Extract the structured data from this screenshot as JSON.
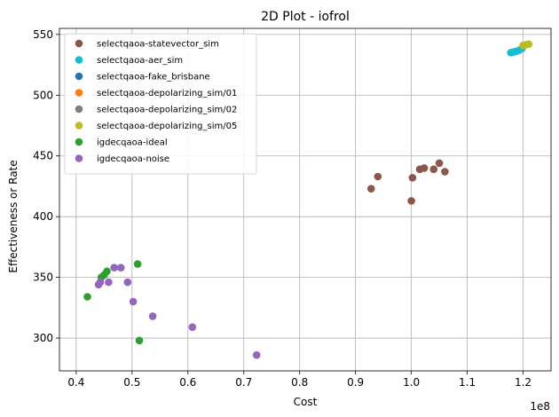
{
  "chart_data": {
    "type": "scatter",
    "title": "2D Plot - iofrol",
    "xlabel": "Cost",
    "ylabel": "Effectiveness or Rate",
    "x_offset_label": "1e8",
    "xlim": [
      37000000,
      125000000
    ],
    "ylim": [
      273000,
      555000
    ],
    "x_ticks": [
      40000000,
      50000000,
      60000000,
      70000000,
      80000000,
      90000000,
      100000000,
      110000000,
      120000000
    ],
    "x_tick_labels": [
      "0.4",
      "0.5",
      "0.6",
      "0.7",
      "0.8",
      "0.9",
      "1.0",
      "1.1",
      "1.2"
    ],
    "y_ticks": [
      300000,
      350000,
      400000,
      450000,
      500000,
      550000
    ],
    "y_tick_labels": [
      "300",
      "350",
      "400",
      "450",
      "500",
      "550"
    ],
    "y_scale_note": "y values in thousands displayed",
    "grid": true,
    "legend_position": "top-left",
    "series": [
      {
        "name": "selectqaoa-statevector_sim",
        "color": "#8c564b",
        "points": [
          [
            92800000,
            423
          ],
          [
            94000000,
            433
          ],
          [
            100000000,
            413
          ],
          [
            100200000,
            432
          ],
          [
            101500000,
            439
          ],
          [
            102300000,
            440
          ],
          [
            104000000,
            439
          ],
          [
            105000000,
            444
          ],
          [
            106000000,
            437
          ]
        ]
      },
      {
        "name": "selectqaoa-aer_sim",
        "color": "#17becf",
        "points": [
          [
            117800000,
            535
          ],
          [
            118200000,
            535.5
          ],
          [
            118700000,
            536
          ],
          [
            119300000,
            537
          ],
          [
            119800000,
            538.5
          ]
        ]
      },
      {
        "name": "selectqaoa-fake_brisbane",
        "color": "#1f77b4",
        "points": []
      },
      {
        "name": "selectqaoa-depolarizing_sim/01",
        "color": "#ff7f0e",
        "points": []
      },
      {
        "name": "selectqaoa-depolarizing_sim/02",
        "color": "#7f7f7f",
        "points": []
      },
      {
        "name": "selectqaoa-depolarizing_sim/05",
        "color": "#bcbd22",
        "points": [
          [
            120000000,
            541
          ],
          [
            120500000,
            541.5
          ],
          [
            121000000,
            542
          ]
        ]
      },
      {
        "name": "igdecqaoa-ideal",
        "color": "#2ca02c",
        "points": [
          [
            42000000,
            334
          ],
          [
            44500000,
            350
          ],
          [
            45000000,
            352
          ],
          [
            45500000,
            355
          ],
          [
            51000000,
            361
          ],
          [
            51300000,
            298
          ]
        ]
      },
      {
        "name": "igdecqaoa-noise",
        "color": "#9467bd",
        "points": [
          [
            44000000,
            344
          ],
          [
            44300000,
            346
          ],
          [
            45800000,
            346
          ],
          [
            46800000,
            358
          ],
          [
            48000000,
            358
          ],
          [
            49200000,
            346
          ],
          [
            50200000,
            330
          ],
          [
            53700000,
            318
          ],
          [
            60800000,
            309
          ],
          [
            72300000,
            286
          ]
        ]
      }
    ]
  }
}
